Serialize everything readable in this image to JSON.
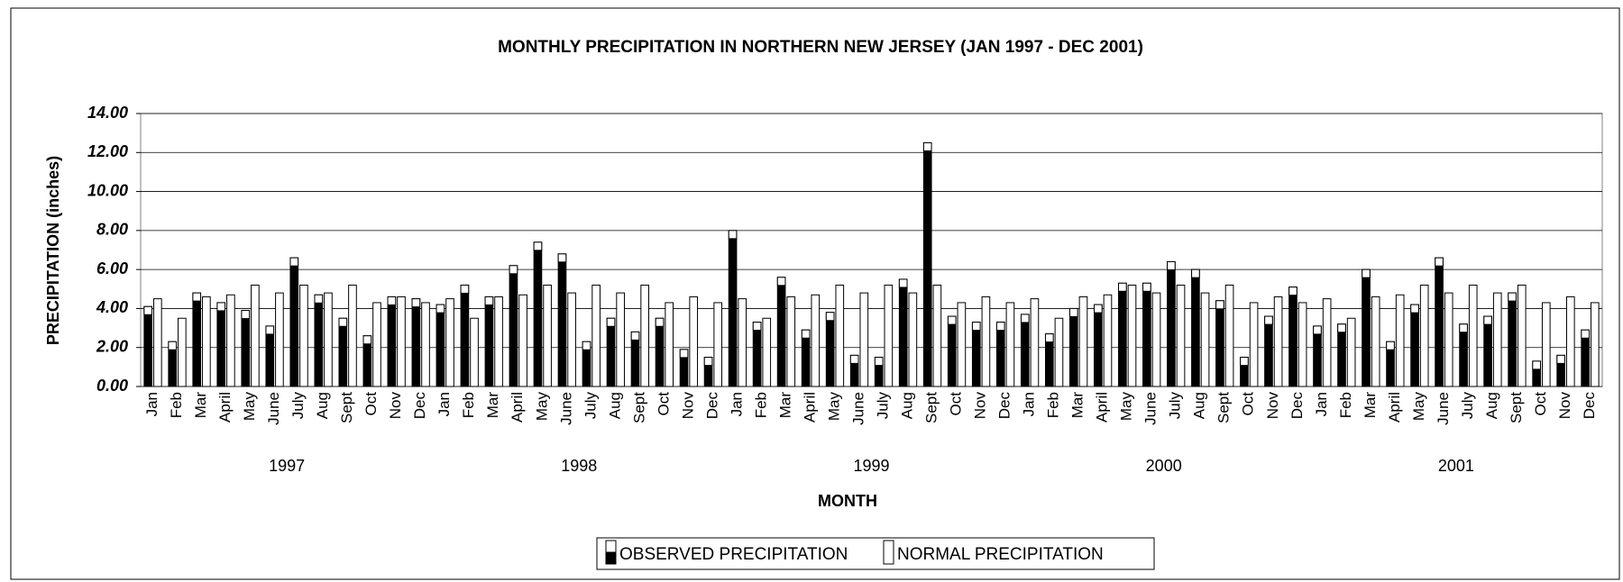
{
  "chart_data": {
    "type": "bar",
    "title": "MONTHLY PRECIPITATION IN NORTHERN NEW JERSEY  (JAN 1997 - DEC 2001)",
    "y_label": "PRECIPITATION (inches)",
    "x_label": "MONTH",
    "categories": [
      "Jan",
      "Feb",
      "Mar",
      "April",
      "May",
      "June",
      "July",
      "Aug",
      "Sept",
      "Oct",
      "Nov",
      "Dec",
      "Jan",
      "Feb",
      "Mar",
      "April",
      "May",
      "June",
      "July",
      "Aug",
      "Sept",
      "Oct",
      "Nov",
      "Dec",
      "Jan",
      "Feb",
      "Mar",
      "April",
      "May",
      "June",
      "July",
      "Aug",
      "Sept",
      "Oct",
      "Nov",
      "Dec",
      "Jan",
      "Feb",
      "Mar",
      "April",
      "May",
      "June",
      "July",
      "Aug",
      "Sept",
      "Oct",
      "Nov",
      "Dec",
      "Jan",
      "Feb",
      "Mar",
      "April",
      "May",
      "June",
      "July",
      "Aug",
      "Sept",
      "Oct",
      "Nov",
      "Dec"
    ],
    "year_labels": [
      "1997",
      "1998",
      "1999",
      "2000",
      "2001"
    ],
    "series": [
      {
        "name": "OBSERVED PRECIPITATION",
        "color": "#000000",
        "values": [
          4.1,
          2.3,
          4.8,
          4.3,
          3.9,
          3.1,
          6.6,
          4.7,
          3.5,
          2.6,
          4.6,
          4.5,
          4.2,
          5.2,
          4.6,
          6.2,
          7.4,
          6.8,
          2.3,
          3.5,
          2.8,
          3.5,
          1.9,
          1.5,
          8.0,
          3.3,
          5.6,
          2.9,
          3.8,
          1.6,
          1.5,
          5.5,
          12.5,
          3.6,
          3.3,
          3.3,
          3.7,
          2.7,
          4.0,
          4.2,
          5.3,
          5.3,
          6.4,
          6.0,
          4.4,
          1.5,
          3.6,
          5.1,
          3.1,
          3.2,
          6.0,
          2.3,
          4.2,
          6.6,
          3.2,
          3.6,
          4.8,
          1.3,
          1.6,
          2.9
        ]
      },
      {
        "name": "NORMAL PRECIPITATION",
        "color": "#ffffff",
        "values": [
          4.5,
          3.5,
          4.6,
          4.7,
          5.2,
          4.8,
          5.2,
          4.8,
          5.2,
          4.3,
          4.6,
          4.3,
          4.5,
          3.5,
          4.6,
          4.7,
          5.2,
          4.8,
          5.2,
          4.8,
          5.2,
          4.3,
          4.6,
          4.3,
          4.5,
          3.5,
          4.6,
          4.7,
          5.2,
          4.8,
          5.2,
          4.8,
          5.2,
          4.3,
          4.6,
          4.3,
          4.5,
          3.5,
          4.6,
          4.7,
          5.2,
          4.8,
          5.2,
          4.8,
          5.2,
          4.3,
          4.6,
          4.3,
          4.5,
          3.5,
          4.6,
          4.7,
          5.2,
          4.8,
          5.2,
          4.8,
          5.2,
          4.3,
          4.6,
          4.3
        ]
      }
    ],
    "ylim": [
      0,
      14
    ],
    "yticks": [
      {
        "value": 0,
        "label": "0.00"
      },
      {
        "value": 2,
        "label": "2.00"
      },
      {
        "value": 4,
        "label": "4.00"
      },
      {
        "value": 6,
        "label": "6.00"
      },
      {
        "value": 8,
        "label": "8.00"
      },
      {
        "value": 10,
        "label": "10.00"
      },
      {
        "value": 12,
        "label": "12.00"
      },
      {
        "value": 14,
        "label": "14.00"
      }
    ],
    "grid": true,
    "legend": "bottom"
  }
}
